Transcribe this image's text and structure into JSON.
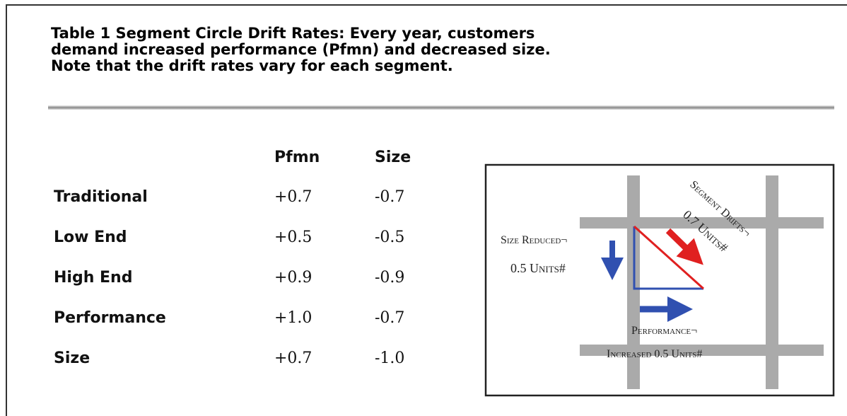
{
  "title": [
    "Table 1 Segment Circle Drift Rates: Every year, customers",
    "demand increased performance (Pfmn) and decreased size.",
    "Note that the drift rates vary for each segment."
  ],
  "table": {
    "header": [
      "Pfmn",
      "Size"
    ],
    "rows": [
      [
        "Traditional",
        "+0.7",
        "-0.7"
      ],
      [
        "Low End",
        "+0.5",
        "-0.5"
      ],
      [
        "High End",
        "+0.9",
        "-0.9"
      ],
      [
        "Performance",
        "+1.0",
        "-0.7"
      ],
      [
        "Size",
        "+0.7",
        "-1.0"
      ]
    ]
  },
  "diagram": {
    "size_label": [
      "Size Reduced¬",
      "0.5 Units#"
    ],
    "drift_label": [
      "Segment Drifts¬",
      "0.7 Units#"
    ],
    "performance_label": [
      "Performance¬",
      "Increased 0.5 Units#"
    ]
  }
}
